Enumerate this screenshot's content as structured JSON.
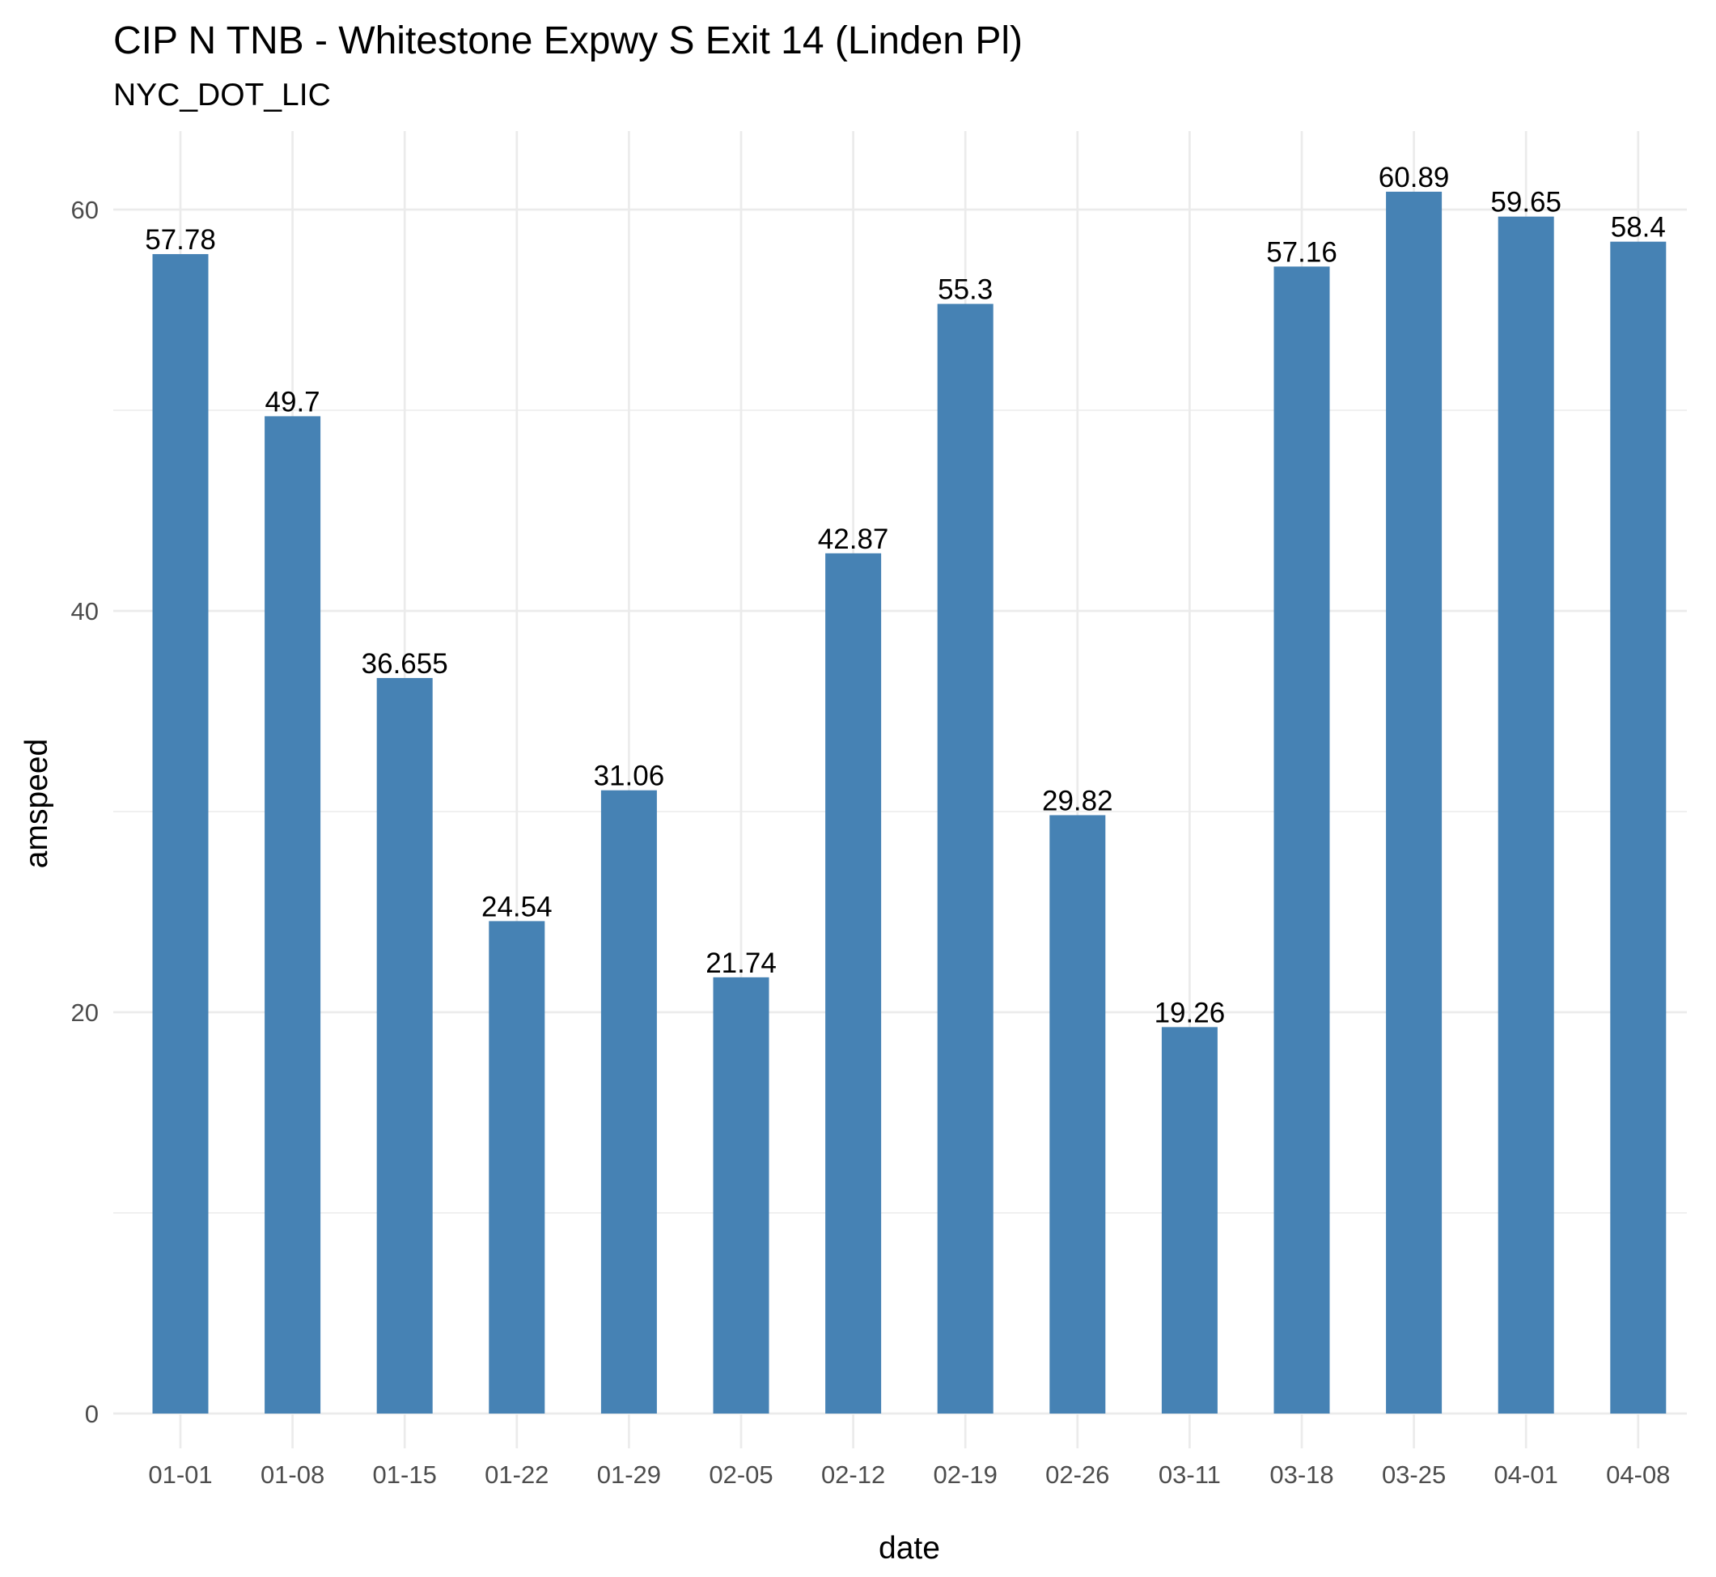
{
  "chart_data": {
    "type": "bar",
    "title": "CIP N TNB - Whitestone Expwy S Exit 14 (Linden Pl)",
    "subtitle": "NYC_DOT_LIC",
    "xlabel": "date",
    "ylabel": "amspeed",
    "categories": [
      "01-01",
      "01-08",
      "01-15",
      "01-22",
      "01-29",
      "02-05",
      "02-12",
      "02-19",
      "02-26",
      "03-11",
      "03-18",
      "03-25",
      "04-01",
      "04-08"
    ],
    "values": [
      57.78,
      49.7,
      36.655,
      24.54,
      31.06,
      21.74,
      42.87,
      55.3,
      29.82,
      19.26,
      57.16,
      60.89,
      59.65,
      58.4
    ],
    "data_labels": [
      "57.78",
      "49.7",
      "36.655",
      "24.54",
      "31.06",
      "21.74",
      "42.87",
      "55.3",
      "29.82",
      "19.26",
      "57.16",
      "60.89",
      "59.65",
      "58.4"
    ],
    "y_ticks": [
      0,
      20,
      40,
      60
    ],
    "y_tick_labels": [
      "0",
      "20",
      "40",
      "60"
    ],
    "ylim": [
      0,
      64
    ],
    "grid": true,
    "legend": "none",
    "bar_color": "#4682b4"
  }
}
